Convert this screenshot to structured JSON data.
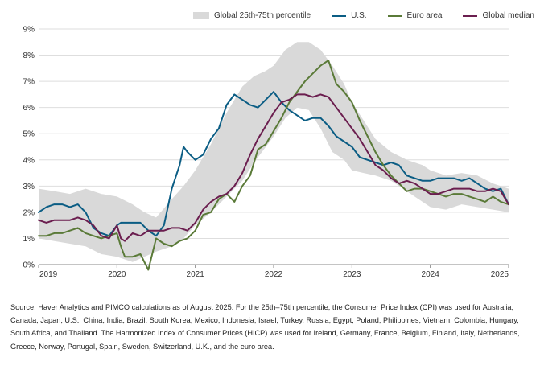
{
  "chart_data": {
    "type": "line",
    "title": "",
    "xlabel": "",
    "ylabel": "",
    "xlim": [
      2019.0,
      2025.0
    ],
    "ylim": [
      0,
      9
    ],
    "y_ticks": [
      0,
      1,
      2,
      3,
      4,
      5,
      6,
      7,
      8,
      9
    ],
    "y_tick_labels": [
      "0%",
      "1%",
      "2%",
      "3%",
      "4%",
      "5%",
      "6%",
      "7%",
      "8%",
      "9%"
    ],
    "x_ticks": [
      2019,
      2020,
      2021,
      2022,
      2023,
      2024,
      2025
    ],
    "x_tick_labels": [
      "2019",
      "2020",
      "2021",
      "2022",
      "2023",
      "2024",
      "2025"
    ],
    "grid": "horizontal",
    "legend_position": "top",
    "band": {
      "name": "Global 25th-75th percentile",
      "color": "#d9d9d9",
      "x": [
        2019.0,
        2019.2,
        2019.4,
        2019.6,
        2019.8,
        2020.0,
        2020.2,
        2020.35,
        2020.5,
        2020.7,
        2020.85,
        2021.0,
        2021.2,
        2021.4,
        2021.6,
        2021.75,
        2021.9,
        2022.0,
        2022.15,
        2022.3,
        2022.45,
        2022.6,
        2022.75,
        2022.9,
        2023.0,
        2023.15,
        2023.3,
        2023.5,
        2023.7,
        2023.9,
        2024.0,
        2024.2,
        2024.4,
        2024.6,
        2024.8,
        2025.0
      ],
      "lower": [
        1.0,
        0.9,
        0.8,
        0.7,
        0.4,
        0.3,
        0.1,
        0.3,
        0.5,
        0.7,
        1.0,
        1.5,
        2.0,
        2.6,
        3.2,
        3.9,
        4.5,
        4.9,
        5.6,
        6.0,
        5.9,
        5.2,
        4.3,
        4.0,
        3.6,
        3.5,
        3.4,
        3.2,
        2.8,
        2.4,
        2.2,
        2.1,
        2.3,
        2.2,
        2.1,
        2.0
      ],
      "upper": [
        2.9,
        2.8,
        2.7,
        2.9,
        2.7,
        2.6,
        2.3,
        2.0,
        1.8,
        2.5,
        3.0,
        3.6,
        4.6,
        5.8,
        6.8,
        7.2,
        7.4,
        7.6,
        8.2,
        8.5,
        8.5,
        8.2,
        7.6,
        6.9,
        6.2,
        5.5,
        4.8,
        4.3,
        4.0,
        3.8,
        3.6,
        3.4,
        3.5,
        3.4,
        3.1,
        2.9
      ]
    },
    "series": [
      {
        "name": "U.S.",
        "color": "#0b5d84",
        "x": [
          2019.0,
          2019.1,
          2019.2,
          2019.3,
          2019.4,
          2019.5,
          2019.6,
          2019.7,
          2019.8,
          2019.9,
          2020.0,
          2020.05,
          2020.1,
          2020.2,
          2020.3,
          2020.4,
          2020.5,
          2020.6,
          2020.7,
          2020.8,
          2020.85,
          2020.9,
          2021.0,
          2021.1,
          2021.2,
          2021.3,
          2021.4,
          2021.5,
          2021.6,
          2021.7,
          2021.8,
          2021.9,
          2022.0,
          2022.1,
          2022.2,
          2022.3,
          2022.4,
          2022.5,
          2022.6,
          2022.7,
          2022.8,
          2022.9,
          2023.0,
          2023.1,
          2023.2,
          2023.3,
          2023.4,
          2023.5,
          2023.6,
          2023.7,
          2023.8,
          2023.9,
          2024.0,
          2024.1,
          2024.2,
          2024.3,
          2024.4,
          2024.5,
          2024.6,
          2024.7,
          2024.8,
          2024.9,
          2025.0
        ],
        "values": [
          2.0,
          2.2,
          2.3,
          2.3,
          2.2,
          2.3,
          2.0,
          1.4,
          1.2,
          1.1,
          1.5,
          1.6,
          1.6,
          1.6,
          1.6,
          1.3,
          1.1,
          1.5,
          2.9,
          3.8,
          4.5,
          4.3,
          4.0,
          4.2,
          4.8,
          5.2,
          6.1,
          6.5,
          6.3,
          6.1,
          6.0,
          6.3,
          6.6,
          6.2,
          5.9,
          5.7,
          5.5,
          5.6,
          5.6,
          5.3,
          4.9,
          4.7,
          4.5,
          4.1,
          4.0,
          3.9,
          3.8,
          3.9,
          3.8,
          3.4,
          3.3,
          3.2,
          3.2,
          3.3,
          3.3,
          3.3,
          3.2,
          3.3,
          3.1,
          2.9,
          2.8,
          2.9,
          2.3
        ]
      },
      {
        "name": "Euro area",
        "color": "#5a7a38",
        "x": [
          2019.0,
          2019.1,
          2019.2,
          2019.3,
          2019.4,
          2019.5,
          2019.6,
          2019.7,
          2019.8,
          2019.9,
          2020.0,
          2020.05,
          2020.1,
          2020.2,
          2020.3,
          2020.4,
          2020.5,
          2020.6,
          2020.7,
          2020.8,
          2020.9,
          2021.0,
          2021.1,
          2021.2,
          2021.3,
          2021.4,
          2021.5,
          2021.6,
          2021.7,
          2021.8,
          2021.9,
          2022.0,
          2022.1,
          2022.2,
          2022.3,
          2022.4,
          2022.5,
          2022.6,
          2022.7,
          2022.8,
          2022.9,
          2023.0,
          2023.1,
          2023.2,
          2023.3,
          2023.4,
          2023.5,
          2023.6,
          2023.7,
          2023.8,
          2023.9,
          2024.0,
          2024.1,
          2024.2,
          2024.3,
          2024.4,
          2024.5,
          2024.6,
          2024.7,
          2024.8,
          2024.9,
          2025.0
        ],
        "values": [
          1.1,
          1.1,
          1.2,
          1.2,
          1.3,
          1.4,
          1.2,
          1.1,
          1.0,
          1.1,
          1.2,
          0.7,
          0.3,
          0.3,
          0.4,
          -0.2,
          1.0,
          0.8,
          0.7,
          0.9,
          1.0,
          1.3,
          1.9,
          2.0,
          2.5,
          2.7,
          2.4,
          3.0,
          3.4,
          4.4,
          4.6,
          5.1,
          5.6,
          6.2,
          6.6,
          7.0,
          7.3,
          7.6,
          7.8,
          6.9,
          6.6,
          6.2,
          5.5,
          4.9,
          4.3,
          3.8,
          3.4,
          3.1,
          2.8,
          2.9,
          2.9,
          2.8,
          2.7,
          2.6,
          2.7,
          2.7,
          2.6,
          2.5,
          2.4,
          2.6,
          2.4,
          2.3
        ]
      },
      {
        "name": "Global median",
        "color": "#6b1e4f",
        "x": [
          2019.0,
          2019.1,
          2019.2,
          2019.3,
          2019.4,
          2019.5,
          2019.6,
          2019.7,
          2019.8,
          2019.9,
          2020.0,
          2020.05,
          2020.1,
          2020.2,
          2020.3,
          2020.4,
          2020.5,
          2020.6,
          2020.7,
          2020.8,
          2020.9,
          2021.0,
          2021.1,
          2021.2,
          2021.3,
          2021.4,
          2021.5,
          2021.6,
          2021.7,
          2021.8,
          2021.9,
          2022.0,
          2022.1,
          2022.2,
          2022.3,
          2022.4,
          2022.5,
          2022.6,
          2022.7,
          2022.8,
          2022.9,
          2023.0,
          2023.1,
          2023.2,
          2023.3,
          2023.4,
          2023.5,
          2023.6,
          2023.7,
          2023.8,
          2023.9,
          2024.0,
          2024.1,
          2024.2,
          2024.3,
          2024.4,
          2024.5,
          2024.6,
          2024.7,
          2024.8,
          2024.9,
          2025.0
        ],
        "values": [
          1.7,
          1.6,
          1.7,
          1.7,
          1.7,
          1.8,
          1.7,
          1.5,
          1.1,
          1.0,
          1.5,
          1.0,
          0.9,
          1.2,
          1.1,
          1.3,
          1.3,
          1.3,
          1.4,
          1.4,
          1.3,
          1.6,
          2.1,
          2.4,
          2.6,
          2.7,
          3.0,
          3.5,
          4.2,
          4.8,
          5.3,
          5.8,
          6.2,
          6.3,
          6.5,
          6.5,
          6.4,
          6.5,
          6.4,
          6.0,
          5.6,
          5.2,
          4.8,
          4.3,
          3.8,
          3.6,
          3.3,
          3.1,
          3.2,
          3.1,
          2.9,
          2.7,
          2.7,
          2.8,
          2.9,
          2.9,
          2.9,
          2.8,
          2.8,
          2.9,
          2.8,
          2.3
        ]
      }
    ],
    "source_note": "Source: Haver Analytics and PIMCO calculations as of August 2025. For the 25th–75th percentile, the Consumer Price Index (CPI) was used for Australia, Canada, Japan, U.S., China, India, Brazil, South Korea, Mexico, Indonesia, Israel, Turkey, Russia, Egypt, Poland, Philippines, Vietnam, Colombia, Hungary, South Africa, and Thailand. The Harmonized Index of Consumer Prices (HICP) was used for Ireland, Germany, France, Belgium, Finland, Italy, Netherlands, Greece, Norway, Portugal, Spain, Sweden, Switzerland, U.K., and the euro area."
  }
}
